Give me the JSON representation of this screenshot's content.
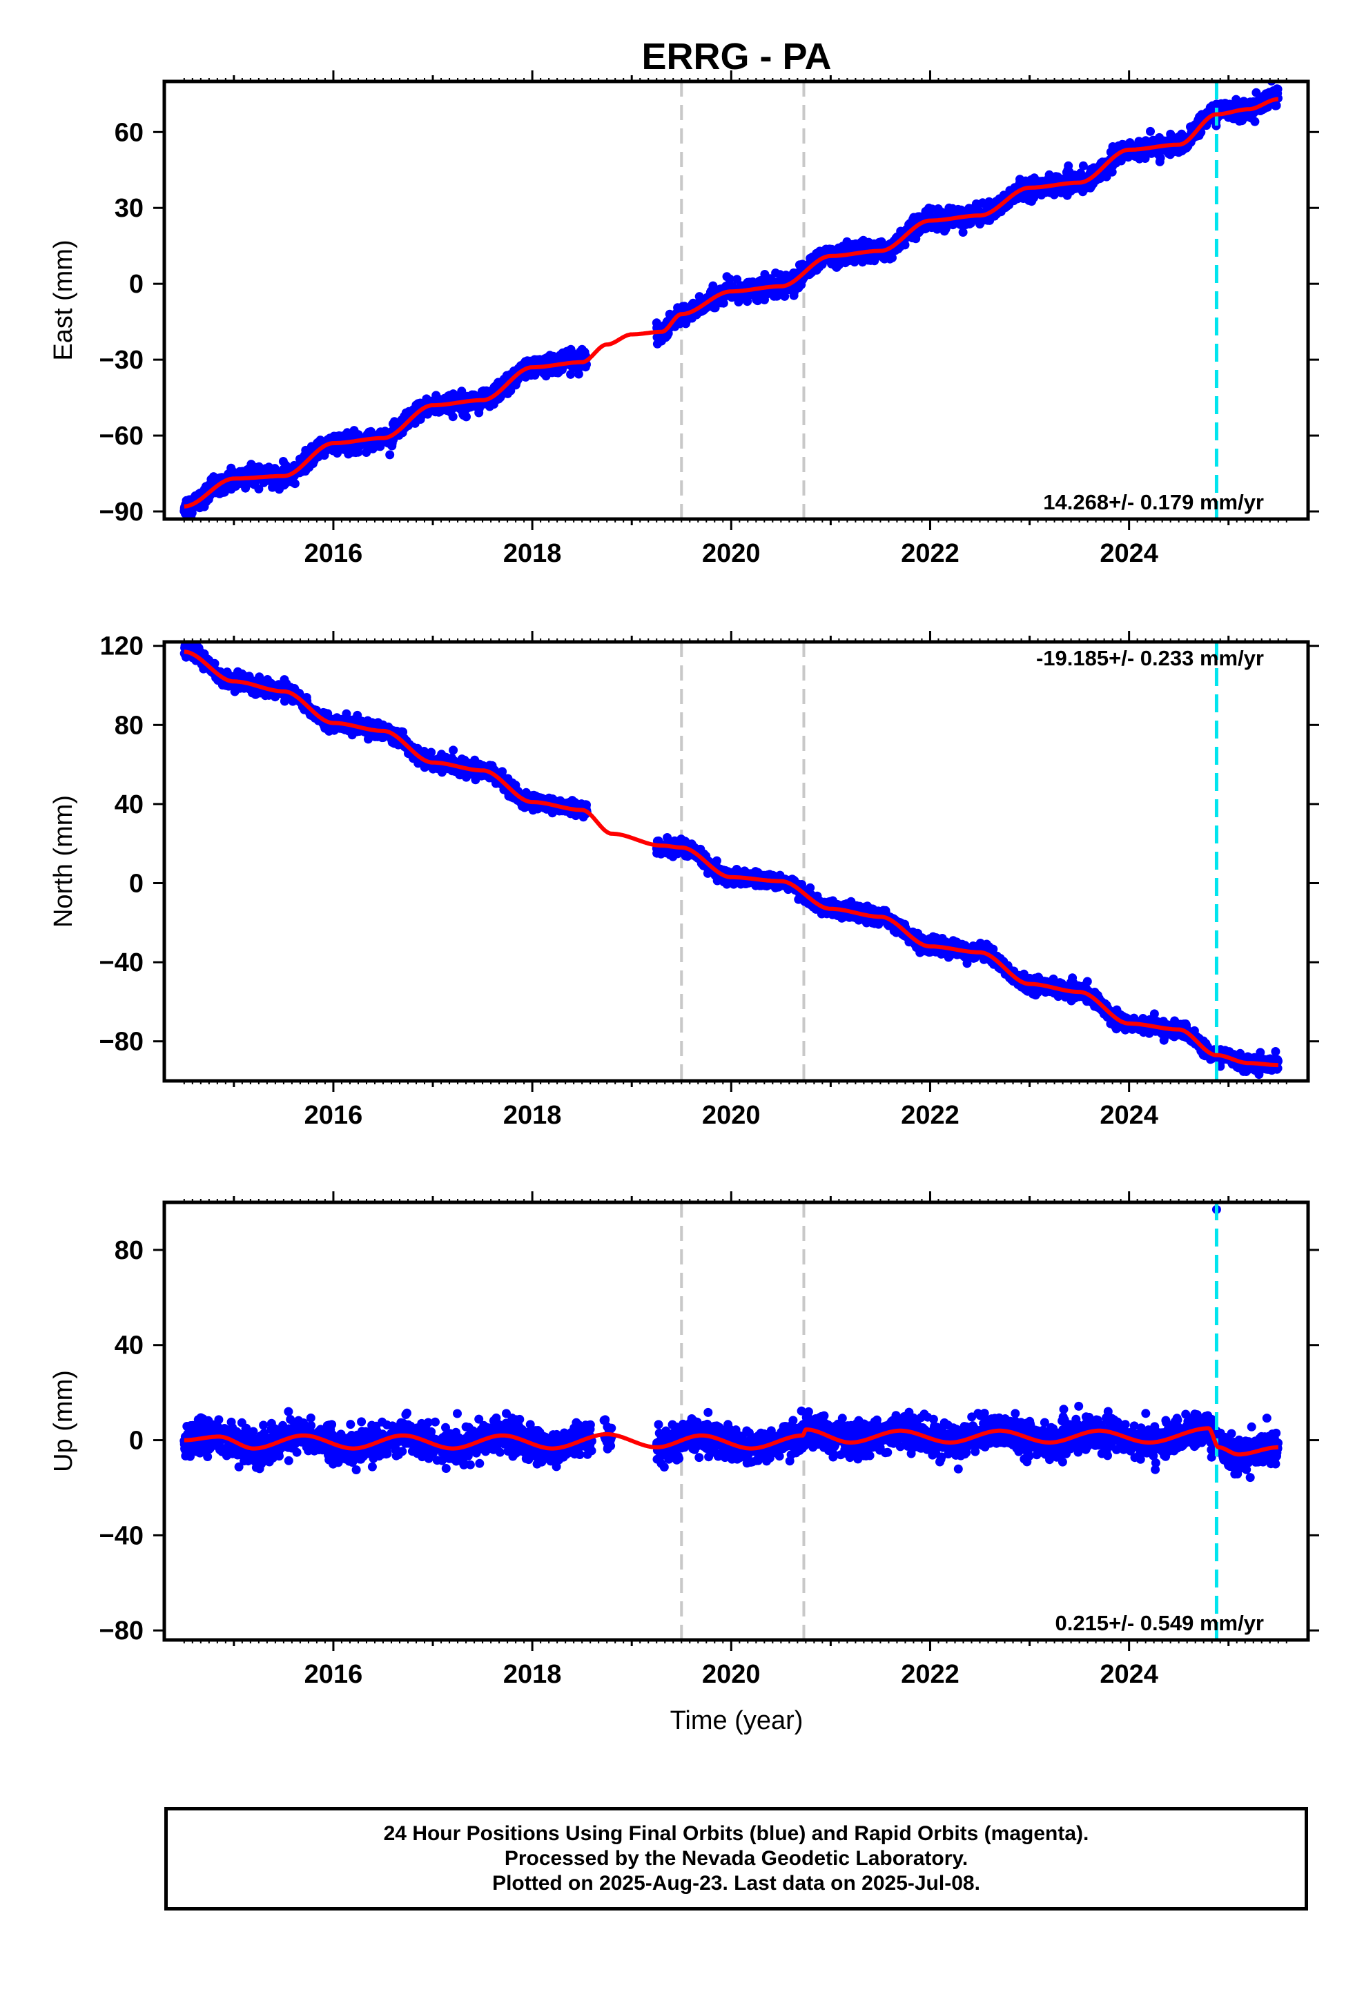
{
  "figure": {
    "title": "ERRG - PA",
    "xlabel": "Time (year)",
    "footer_lines": [
      "24 Hour Positions Using Final Orbits (blue) and Rapid Orbits (magenta).",
      "Processed by the Nevada Geodetic Laboratory.",
      "Plotted on 2025-Aug-23. Last data on 2025-Jul-08."
    ]
  },
  "colors": {
    "data_points": "#0000ff",
    "model_fit": "#ff0000",
    "equipment_change_line": "#c8c8c8",
    "event_line": "#00e5ee"
  },
  "chart_data": [
    {
      "type": "scatter",
      "ylabel": "East (mm)",
      "xlim": [
        2014.3,
        2025.8
      ],
      "ylim": [
        -93,
        80
      ],
      "yticks": [
        -90,
        -60,
        -30,
        0,
        30,
        60
      ],
      "xticks": [
        2016,
        2018,
        2020,
        2022,
        2024
      ],
      "rate_label": "14.268+/- 0.179 mm/yr",
      "vertical_lines_gray": [
        2019.5,
        2020.73
      ],
      "vertical_line_cyan": 2024.88,
      "series": [
        {
          "kind": "observations",
          "color": "blue",
          "gaps": [
            [
              2018.55,
              2019.25
            ]
          ],
          "trend_rate": 14.268,
          "ref_time": 2020.0,
          "ref_value": -3,
          "seasonal_amplitude": 3.2,
          "seasonal_phase": 1.6,
          "scatter": 1.8,
          "anchors": [
            [
              2014.5,
              -88
            ],
            [
              2015.0,
              -77
            ],
            [
              2015.5,
              -76
            ],
            [
              2016.0,
              -63
            ],
            [
              2016.5,
              -61
            ],
            [
              2017.0,
              -48
            ],
            [
              2017.5,
              -46
            ],
            [
              2018.0,
              -33
            ],
            [
              2018.5,
              -30
            ],
            [
              2019.0,
              -20
            ],
            [
              2019.3,
              -19
            ],
            [
              2019.5,
              -12
            ],
            [
              2020.0,
              -3
            ],
            [
              2020.5,
              -1
            ],
            [
              2021.0,
              11
            ],
            [
              2021.5,
              13
            ],
            [
              2022.0,
              25
            ],
            [
              2022.5,
              27
            ],
            [
              2023.0,
              38
            ],
            [
              2023.5,
              40
            ],
            [
              2024.0,
              53
            ],
            [
              2024.5,
              55
            ],
            [
              2024.88,
              68
            ],
            [
              2025.2,
              69
            ],
            [
              2025.5,
              74
            ]
          ]
        },
        {
          "kind": "model",
          "color": "red",
          "anchors": [
            [
              2014.5,
              -88
            ],
            [
              2015.0,
              -77
            ],
            [
              2015.5,
              -76
            ],
            [
              2016.0,
              -63
            ],
            [
              2016.5,
              -61
            ],
            [
              2017.0,
              -48
            ],
            [
              2017.5,
              -46
            ],
            [
              2018.0,
              -33
            ],
            [
              2018.5,
              -31
            ],
            [
              2018.75,
              -24
            ],
            [
              2019.0,
              -20
            ],
            [
              2019.3,
              -19
            ],
            [
              2019.5,
              -12
            ],
            [
              2020.0,
              -3
            ],
            [
              2020.5,
              -1
            ],
            [
              2021.0,
              11
            ],
            [
              2021.5,
              13
            ],
            [
              2022.0,
              25
            ],
            [
              2022.5,
              27
            ],
            [
              2023.0,
              38
            ],
            [
              2023.5,
              40
            ],
            [
              2024.0,
              53
            ],
            [
              2024.5,
              55
            ],
            [
              2024.88,
              67
            ],
            [
              2025.2,
              69
            ],
            [
              2025.5,
              73
            ]
          ]
        }
      ]
    },
    {
      "type": "scatter",
      "ylabel": "North (mm)",
      "xlim": [
        2014.3,
        2025.8
      ],
      "ylim": [
        -100,
        122
      ],
      "yticks": [
        -80,
        -40,
        0,
        40,
        80,
        120
      ],
      "xticks": [
        2016,
        2018,
        2020,
        2022,
        2024
      ],
      "rate_label": "-19.185+/- 0.233 mm/yr",
      "vertical_lines_gray": [
        2019.5,
        2020.73
      ],
      "vertical_line_cyan": 2024.88,
      "series": [
        {
          "kind": "observations",
          "color": "blue",
          "gaps": [
            [
              2018.55,
              2019.25
            ]
          ],
          "scatter": 1.8,
          "anchors": [
            [
              2014.5,
              118
            ],
            [
              2015.0,
              102
            ],
            [
              2015.5,
              97
            ],
            [
              2016.0,
              81
            ],
            [
              2016.5,
              77
            ],
            [
              2017.0,
              61
            ],
            [
              2017.5,
              57
            ],
            [
              2018.0,
              41
            ],
            [
              2018.5,
              37
            ],
            [
              2019.3,
              18
            ],
            [
              2019.5,
              18
            ],
            [
              2020.0,
              3
            ],
            [
              2020.5,
              1
            ],
            [
              2021.0,
              -13
            ],
            [
              2021.5,
              -17
            ],
            [
              2022.0,
              -32
            ],
            [
              2022.5,
              -35
            ],
            [
              2023.0,
              -51
            ],
            [
              2023.5,
              -55
            ],
            [
              2024.0,
              -71
            ],
            [
              2024.5,
              -74
            ],
            [
              2024.88,
              -87
            ],
            [
              2025.2,
              -91
            ],
            [
              2025.5,
              -92
            ]
          ]
        },
        {
          "kind": "model",
          "color": "red",
          "anchors": [
            [
              2014.5,
              117
            ],
            [
              2015.0,
              102
            ],
            [
              2015.5,
              97
            ],
            [
              2016.0,
              81
            ],
            [
              2016.5,
              77
            ],
            [
              2017.0,
              61
            ],
            [
              2017.5,
              57
            ],
            [
              2018.0,
              41
            ],
            [
              2018.5,
              37
            ],
            [
              2018.8,
              25
            ],
            [
              2019.3,
              19
            ],
            [
              2019.5,
              18
            ],
            [
              2020.0,
              3
            ],
            [
              2020.5,
              1
            ],
            [
              2021.0,
              -13
            ],
            [
              2021.5,
              -17
            ],
            [
              2022.0,
              -32
            ],
            [
              2022.5,
              -35
            ],
            [
              2023.0,
              -51
            ],
            [
              2023.5,
              -55
            ],
            [
              2024.0,
              -71
            ],
            [
              2024.5,
              -74
            ],
            [
              2024.88,
              -87
            ],
            [
              2025.2,
              -91
            ],
            [
              2025.5,
              -92
            ]
          ]
        }
      ]
    },
    {
      "type": "scatter",
      "ylabel": "Up (mm)",
      "xlim": [
        2014.3,
        2025.8
      ],
      "ylim": [
        -84,
        100
      ],
      "yticks": [
        -80,
        -40,
        0,
        40,
        80
      ],
      "xticks": [
        2016,
        2018,
        2020,
        2022,
        2024
      ],
      "rate_label": "0.215+/- 0.549 mm/yr",
      "vertical_lines_gray": [
        2019.5,
        2020.73
      ],
      "vertical_line_cyan": 2024.88,
      "outliers": [
        [
          2024.88,
          97
        ]
      ],
      "series": [
        {
          "kind": "observations",
          "color": "blue",
          "gaps": [
            [
              2018.6,
              2018.72
            ],
            [
              2018.8,
              2019.25
            ]
          ],
          "scatter": 3.4,
          "anchors": [
            [
              2014.5,
              0
            ],
            [
              2014.85,
              1.5
            ],
            [
              2015.2,
              -3.5
            ],
            [
              2015.7,
              2
            ],
            [
              2016.2,
              -3.5
            ],
            [
              2016.7,
              2
            ],
            [
              2017.2,
              -3.5
            ],
            [
              2017.7,
              2
            ],
            [
              2018.2,
              -3.5
            ],
            [
              2018.75,
              2.5
            ],
            [
              2019.25,
              -3
            ],
            [
              2019.7,
              2
            ],
            [
              2020.2,
              -3.5
            ],
            [
              2020.72,
              2
            ],
            [
              2020.75,
              4.5
            ],
            [
              2021.2,
              -1
            ],
            [
              2021.7,
              4
            ],
            [
              2022.2,
              -1
            ],
            [
              2022.7,
              4
            ],
            [
              2023.2,
              -1
            ],
            [
              2023.7,
              4
            ],
            [
              2024.2,
              -1
            ],
            [
              2024.8,
              5
            ],
            [
              2024.9,
              -3
            ],
            [
              2025.1,
              -6
            ],
            [
              2025.5,
              -3
            ]
          ]
        },
        {
          "kind": "model",
          "color": "red",
          "anchors": [
            [
              2014.5,
              0
            ],
            [
              2014.85,
              1.5
            ],
            [
              2015.2,
              -3.5
            ],
            [
              2015.7,
              2
            ],
            [
              2016.2,
              -3.5
            ],
            [
              2016.7,
              2
            ],
            [
              2017.2,
              -3.5
            ],
            [
              2017.7,
              2
            ],
            [
              2018.2,
              -3.5
            ],
            [
              2018.75,
              2.5
            ],
            [
              2019.25,
              -3
            ],
            [
              2019.7,
              2
            ],
            [
              2020.2,
              -3.5
            ],
            [
              2020.72,
              2
            ],
            [
              2020.75,
              4.5
            ],
            [
              2021.2,
              -1
            ],
            [
              2021.7,
              4
            ],
            [
              2022.2,
              -1
            ],
            [
              2022.7,
              4
            ],
            [
              2023.2,
              -1
            ],
            [
              2023.7,
              4
            ],
            [
              2024.2,
              -1
            ],
            [
              2024.8,
              5
            ],
            [
              2024.9,
              -3
            ],
            [
              2025.1,
              -6
            ],
            [
              2025.5,
              -3
            ]
          ]
        }
      ]
    }
  ]
}
